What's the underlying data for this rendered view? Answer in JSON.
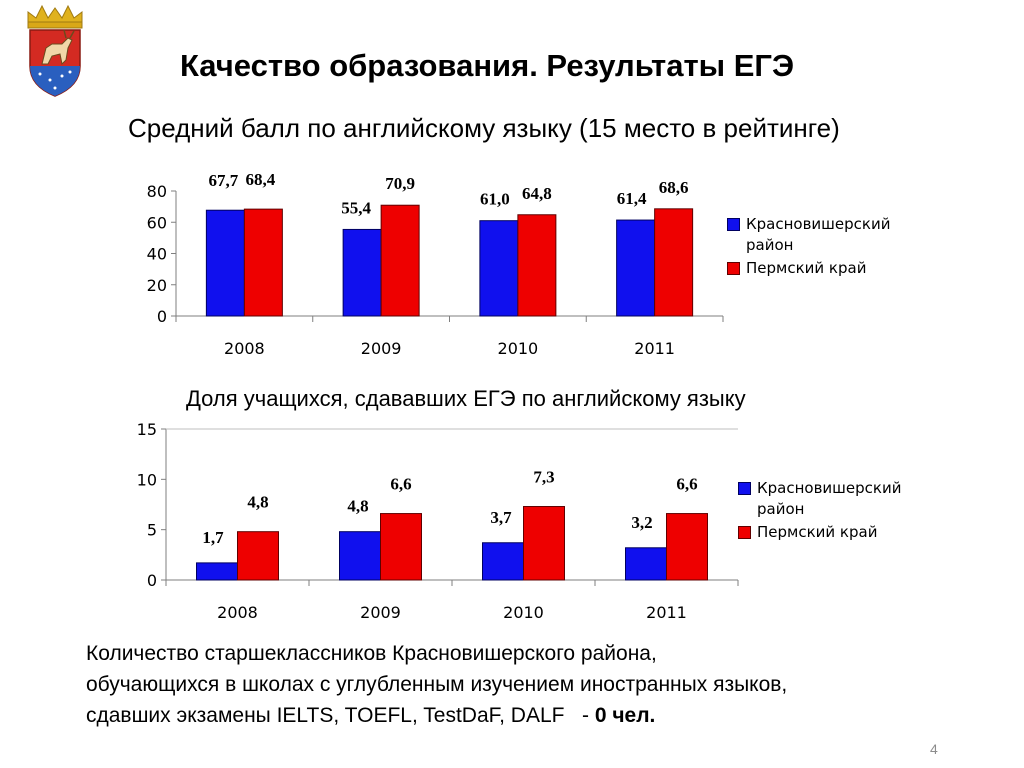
{
  "header": {
    "title": "Качество образования.  Результаты ЕГЭ"
  },
  "section1": {
    "subtitle": "Средний балл по английскому языку (15 место в рейтинге)"
  },
  "section2": {
    "subtitle": "Доля учащихся, сдававших ЕГЭ по английскому языку"
  },
  "note": {
    "line1": "Количество старшеклассников Красновишерского района,",
    "line2": "обучающихся в школах с углубленным изучением иностранных языков,",
    "line3_prefix": "сдавших экзамены IELTS, TOEFL, TestDaF, DALF   - ",
    "line3_bold": "0 чел."
  },
  "page_number": "4",
  "colors": {
    "series1": "#1010ee",
    "series2": "#ee0000",
    "axis": "#7f7f7f"
  },
  "chart_data": [
    {
      "type": "bar",
      "title": "Средний балл по английскому языку (15 место в рейтинге)",
      "categories": [
        "2008",
        "2009",
        "2010",
        "2011"
      ],
      "series": [
        {
          "name": "Красновишерский район",
          "values": [
            67.7,
            55.4,
            61.0,
            61.4
          ],
          "labels": [
            "67,7",
            "55,4",
            "61,0",
            "61,4"
          ]
        },
        {
          "name": "Пермский край",
          "values": [
            68.4,
            70.9,
            64.8,
            68.6
          ],
          "labels": [
            "68,4",
            "70,9",
            "64,8",
            "68,6"
          ]
        }
      ],
      "ylim": [
        0,
        80
      ],
      "yticks": [
        "0",
        "20",
        "40",
        "60",
        "80"
      ],
      "legend_position": "right",
      "grid": false
    },
    {
      "type": "bar",
      "title": "Доля учащихся, сдававших ЕГЭ по английскому языку",
      "categories": [
        "2008",
        "2009",
        "2010",
        "2011"
      ],
      "series": [
        {
          "name": "Красновишерский район",
          "values": [
            1.7,
            4.8,
            3.7,
            3.2
          ],
          "labels": [
            "1,7",
            "4,8",
            "3,7",
            "3,2"
          ]
        },
        {
          "name": "Пермский край",
          "values": [
            4.8,
            6.6,
            7.3,
            6.6
          ],
          "labels": [
            "4,8",
            "6,6",
            "7,3",
            "6,6"
          ]
        }
      ],
      "ylim": [
        0,
        15
      ],
      "yticks": [
        "0",
        "5",
        "10",
        "15"
      ],
      "legend_position": "right",
      "grid": false
    }
  ]
}
